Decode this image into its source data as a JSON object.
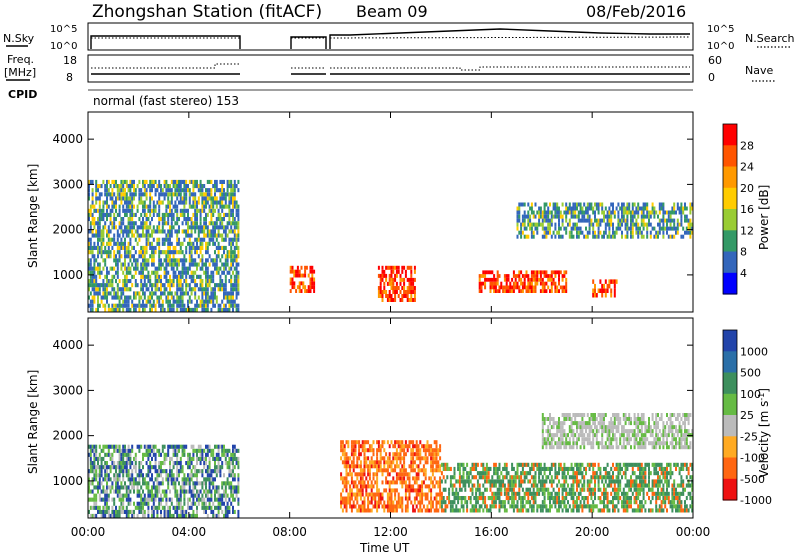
{
  "header": {
    "station": "Zhongshan Station (fitACF)",
    "beam": "Beam 09",
    "date": "08/Feb/2016"
  },
  "top_panels": {
    "nsky_label": "N.Sky",
    "nsky_ticks": [
      "10^5",
      "10^0"
    ],
    "nsearch_label": "N.Search",
    "nsearch_ticks": [
      "10^5",
      "10^0"
    ],
    "freq_label_line1": "Freq.",
    "freq_label_line2": "[MHz]",
    "freq_ticks": [
      "18",
      "8"
    ],
    "nave_label": "Nave",
    "nave_ticks": [
      "60",
      "0"
    ],
    "cpid_label": "CPID",
    "cpid_text": "normal (fast stereo) 153"
  },
  "chart_data": [
    {
      "type": "heatmap",
      "name": "power",
      "ylabel": "Slant Range [km]",
      "ylim": [
        180,
        4600
      ],
      "yticks": [
        "4000",
        "3000",
        "2000",
        "1000"
      ],
      "xlim": [
        "00:00",
        "24:00"
      ],
      "colorbar_label": "Power [dB]",
      "colorbar_ticks": [
        "28",
        "24",
        "20",
        "16",
        "12",
        "8",
        "4"
      ],
      "colorbar_colors": [
        "#ff0000",
        "#ff5500",
        "#ff9900",
        "#ffcc00",
        "#99cc33",
        "#339966",
        "#3366bb",
        "#0000ff"
      ],
      "data_gaps_utc": [
        [
          "06:00",
          "08:00"
        ],
        [
          "09:00",
          "09:24"
        ]
      ],
      "regions": [
        {
          "t": [
            "00:00",
            "06:00"
          ],
          "range_km": [
            180,
            3100
          ],
          "level": "low-mid"
        },
        {
          "t": [
            "08:00",
            "09:00"
          ],
          "range_km": [
            600,
            1200
          ],
          "level": "high"
        },
        {
          "t": [
            "11:30",
            "13:00"
          ],
          "range_km": [
            400,
            1200
          ],
          "level": "high"
        },
        {
          "t": [
            "15:30",
            "19:00"
          ],
          "range_km": [
            600,
            1100
          ],
          "level": "high"
        },
        {
          "t": [
            "20:00",
            "21:00"
          ],
          "range_km": [
            500,
            900
          ],
          "level": "high"
        },
        {
          "t": [
            "17:00",
            "24:00"
          ],
          "range_km": [
            1800,
            2600
          ],
          "level": "low-mid"
        }
      ]
    },
    {
      "type": "heatmap",
      "name": "velocity",
      "ylabel": "Slant Range [km]",
      "ylim": [
        180,
        4600
      ],
      "yticks": [
        "4000",
        "3000",
        "2000",
        "1000"
      ],
      "xlim": [
        "00:00",
        "24:00"
      ],
      "xticks": [
        "00:00",
        "04:00",
        "08:00",
        "12:00",
        "16:00",
        "20:00",
        "00:00"
      ],
      "xlabel": "Time UT",
      "colorbar_label": "Velocity [m s",
      "colorbar_sup": "-1",
      "colorbar_label_end": "]",
      "colorbar_ticks": [
        "1000",
        "500",
        "100",
        "25",
        "-25",
        "-100",
        "-500",
        "-1000"
      ],
      "colorbar_colors": [
        "#2244aa",
        "#2a6fa8",
        "#3d8f5d",
        "#66bb44",
        "#bbbbbb",
        "#ffaa22",
        "#ff6611",
        "#ee1111"
      ],
      "regions": [
        {
          "t": [
            "00:00",
            "06:00"
          ],
          "range_km": [
            180,
            1800
          ],
          "velocity": "mixed"
        },
        {
          "t": [
            "10:00",
            "14:00"
          ],
          "range_km": [
            300,
            1900
          ],
          "velocity": "-500"
        },
        {
          "t": [
            "14:00",
            "24:00"
          ],
          "range_km": [
            300,
            1400
          ],
          "velocity": "+100"
        },
        {
          "t": [
            "18:00",
            "24:00"
          ],
          "range_km": [
            1700,
            2500
          ],
          "velocity": "+25"
        }
      ]
    }
  ]
}
